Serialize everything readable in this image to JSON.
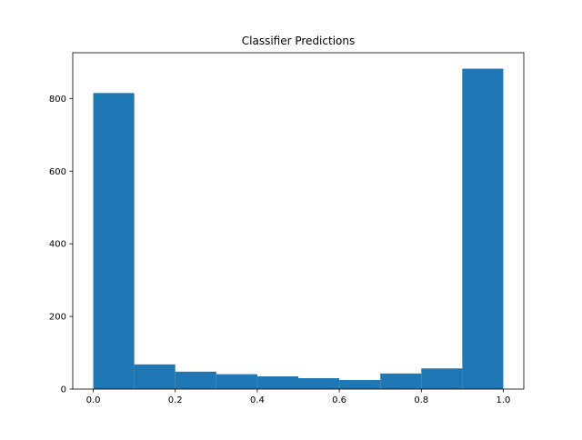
{
  "chart_data": {
    "type": "bar",
    "title": "Classifier Predictions",
    "xlabel": "",
    "ylabel": "",
    "bin_edges": [
      0.0,
      0.1,
      0.2,
      0.3,
      0.4,
      0.5,
      0.6,
      0.7,
      0.8,
      0.9,
      1.0
    ],
    "values": [
      815,
      68,
      48,
      41,
      35,
      30,
      25,
      43,
      57,
      882
    ],
    "xlim": [
      -0.05,
      1.05
    ],
    "ylim": [
      0,
      926
    ],
    "xticks": [
      0.0,
      0.2,
      0.4,
      0.6,
      0.8,
      1.0
    ],
    "xtick_labels": [
      "0.0",
      "0.2",
      "0.4",
      "0.6",
      "0.8",
      "1.0"
    ],
    "yticks": [
      0,
      200,
      400,
      600,
      800
    ],
    "ytick_labels": [
      "0",
      "200",
      "400",
      "600",
      "800"
    ],
    "grid": false,
    "bar_color": "#1f77b4"
  }
}
